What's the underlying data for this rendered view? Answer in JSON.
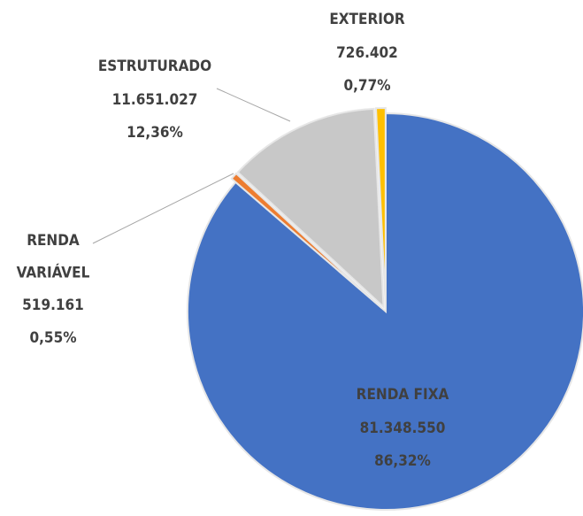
{
  "chart_data": {
    "type": "pie",
    "categories": [
      "RENDA FIXA",
      "RENDA VARIÁVEL",
      "ESTRUTURADO",
      "EXTERIOR"
    ],
    "values": [
      81348550,
      519161,
      11651027,
      726402
    ],
    "value_labels": [
      "81.348.550",
      "519.161",
      "11.651.027",
      "726.402"
    ],
    "percentages": [
      86.32,
      0.55,
      12.36,
      0.77
    ],
    "percentage_labels": [
      "86,32%",
      "0,55%",
      "12,36%",
      "0,77%"
    ],
    "colors": [
      "#4472c4",
      "#ed7d31",
      "#c8c8c8",
      "#ffc000"
    ]
  }
}
